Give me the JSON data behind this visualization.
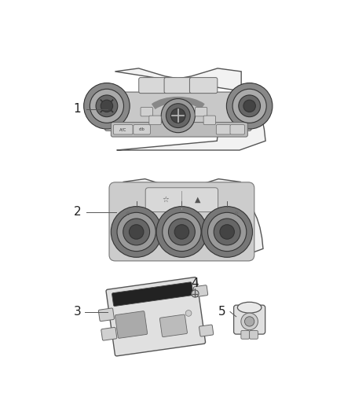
{
  "background_color": "#ffffff",
  "fig_width": 4.38,
  "fig_height": 5.33,
  "dpi": 100,
  "label_color": "#222222",
  "line_color": "#555555"
}
